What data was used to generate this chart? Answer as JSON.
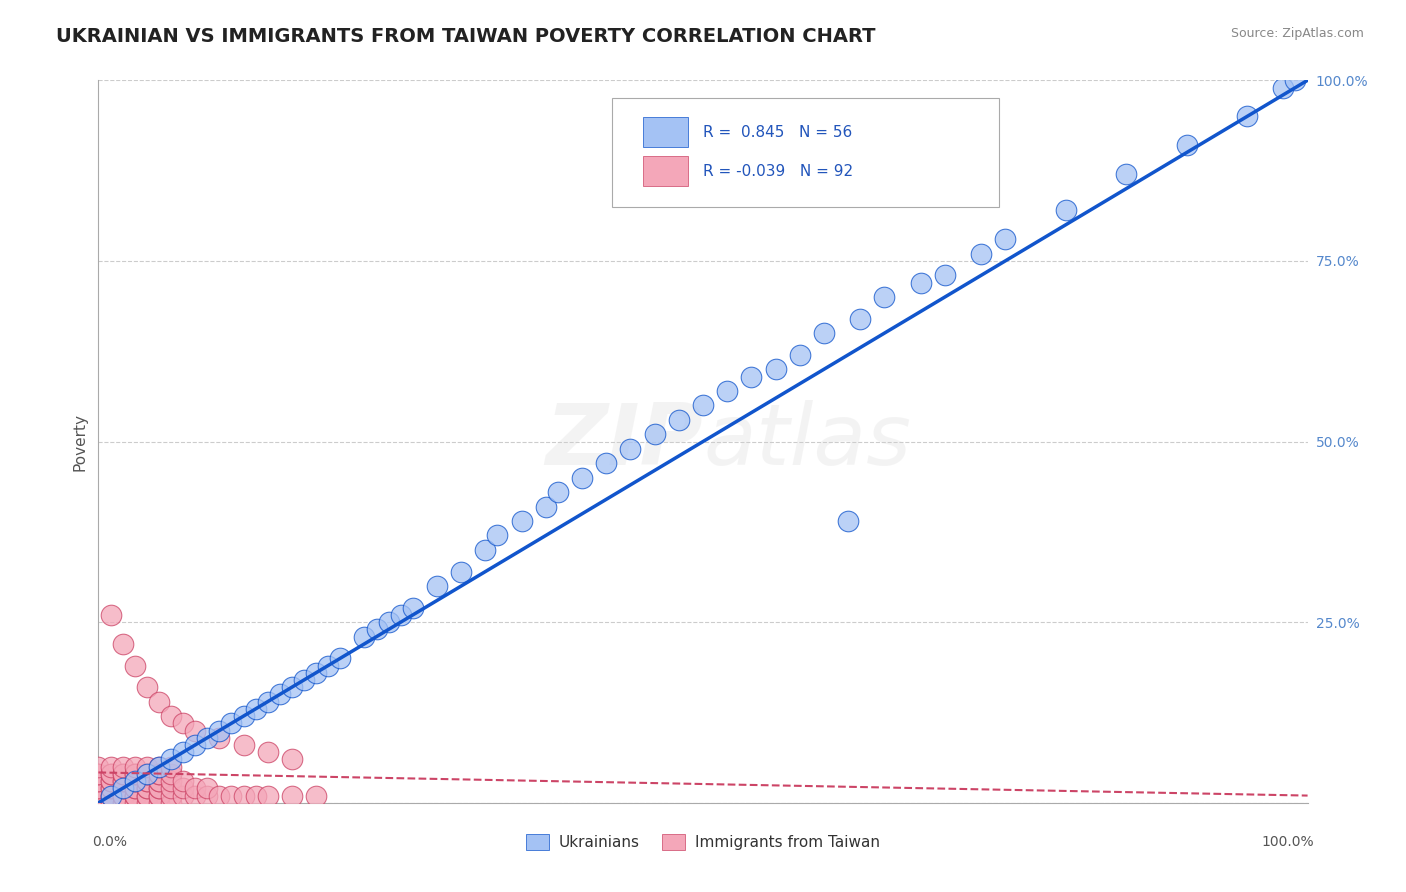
{
  "title": "UKRAINIAN VS IMMIGRANTS FROM TAIWAN POVERTY CORRELATION CHART",
  "source_text": "Source: ZipAtlas.com",
  "ylabel": "Poverty",
  "watermark": "ZIPatlas",
  "xlim": [
    0,
    1
  ],
  "ylim": [
    0,
    1
  ],
  "blue_r": "0.845",
  "blue_n": "56",
  "pink_r": "-0.039",
  "pink_n": "92",
  "blue_color": "#a4c2f4",
  "pink_color": "#f4a7b9",
  "blue_line_color": "#1155cc",
  "pink_line_color": "#cc4466",
  "grid_color": "#cccccc",
  "background_color": "#ffffff",
  "blue_scatter_x": [
    0.01,
    0.02,
    0.03,
    0.04,
    0.05,
    0.06,
    0.07,
    0.08,
    0.09,
    0.1,
    0.11,
    0.12,
    0.13,
    0.14,
    0.15,
    0.16,
    0.17,
    0.18,
    0.19,
    0.2,
    0.22,
    0.23,
    0.24,
    0.25,
    0.26,
    0.28,
    0.3,
    0.32,
    0.33,
    0.35,
    0.37,
    0.38,
    0.4,
    0.42,
    0.44,
    0.46,
    0.48,
    0.5,
    0.52,
    0.54,
    0.56,
    0.58,
    0.6,
    0.63,
    0.65,
    0.68,
    0.7,
    0.73,
    0.75,
    0.8,
    0.85,
    0.9,
    0.95,
    0.98,
    0.99,
    0.62
  ],
  "blue_scatter_y": [
    0.01,
    0.02,
    0.03,
    0.04,
    0.05,
    0.06,
    0.07,
    0.08,
    0.09,
    0.1,
    0.11,
    0.12,
    0.13,
    0.14,
    0.15,
    0.16,
    0.17,
    0.18,
    0.19,
    0.2,
    0.23,
    0.24,
    0.25,
    0.26,
    0.27,
    0.3,
    0.32,
    0.35,
    0.37,
    0.39,
    0.41,
    0.43,
    0.45,
    0.47,
    0.49,
    0.51,
    0.53,
    0.55,
    0.57,
    0.59,
    0.6,
    0.62,
    0.65,
    0.67,
    0.7,
    0.72,
    0.73,
    0.76,
    0.78,
    0.82,
    0.87,
    0.91,
    0.95,
    0.99,
    1.0,
    0.39
  ],
  "pink_scatter_x": [
    0.0,
    0.0,
    0.0,
    0.0,
    0.0,
    0.0,
    0.0,
    0.0,
    0.0,
    0.0,
    0.01,
    0.01,
    0.01,
    0.01,
    0.01,
    0.01,
    0.01,
    0.01,
    0.01,
    0.01,
    0.02,
    0.02,
    0.02,
    0.02,
    0.02,
    0.02,
    0.02,
    0.02,
    0.02,
    0.02,
    0.03,
    0.03,
    0.03,
    0.03,
    0.03,
    0.03,
    0.03,
    0.03,
    0.03,
    0.03,
    0.04,
    0.04,
    0.04,
    0.04,
    0.04,
    0.04,
    0.04,
    0.04,
    0.04,
    0.04,
    0.05,
    0.05,
    0.05,
    0.05,
    0.05,
    0.05,
    0.05,
    0.05,
    0.05,
    0.05,
    0.06,
    0.06,
    0.06,
    0.06,
    0.06,
    0.06,
    0.07,
    0.07,
    0.07,
    0.08,
    0.08,
    0.09,
    0.09,
    0.1,
    0.11,
    0.12,
    0.13,
    0.14,
    0.16,
    0.18,
    0.01,
    0.02,
    0.03,
    0.04,
    0.05,
    0.06,
    0.07,
    0.08,
    0.1,
    0.12,
    0.14,
    0.16
  ],
  "pink_scatter_y": [
    0.0,
    0.01,
    0.01,
    0.02,
    0.02,
    0.03,
    0.03,
    0.04,
    0.04,
    0.05,
    0.0,
    0.01,
    0.01,
    0.02,
    0.02,
    0.03,
    0.03,
    0.04,
    0.04,
    0.05,
    0.0,
    0.01,
    0.01,
    0.02,
    0.02,
    0.03,
    0.03,
    0.04,
    0.04,
    0.05,
    0.0,
    0.01,
    0.01,
    0.02,
    0.02,
    0.03,
    0.03,
    0.04,
    0.04,
    0.05,
    0.0,
    0.01,
    0.01,
    0.02,
    0.02,
    0.03,
    0.03,
    0.04,
    0.04,
    0.05,
    0.0,
    0.01,
    0.01,
    0.02,
    0.02,
    0.03,
    0.03,
    0.04,
    0.04,
    0.05,
    0.0,
    0.01,
    0.02,
    0.03,
    0.04,
    0.05,
    0.01,
    0.02,
    0.03,
    0.01,
    0.02,
    0.01,
    0.02,
    0.01,
    0.01,
    0.01,
    0.01,
    0.01,
    0.01,
    0.01,
    0.26,
    0.22,
    0.19,
    0.16,
    0.14,
    0.12,
    0.11,
    0.1,
    0.09,
    0.08,
    0.07,
    0.06
  ],
  "blue_line_x": [
    0.0,
    1.0
  ],
  "blue_line_y": [
    0.0,
    1.0
  ],
  "pink_line_x": [
    0.0,
    1.0
  ],
  "pink_line_y": [
    0.042,
    0.01
  ]
}
